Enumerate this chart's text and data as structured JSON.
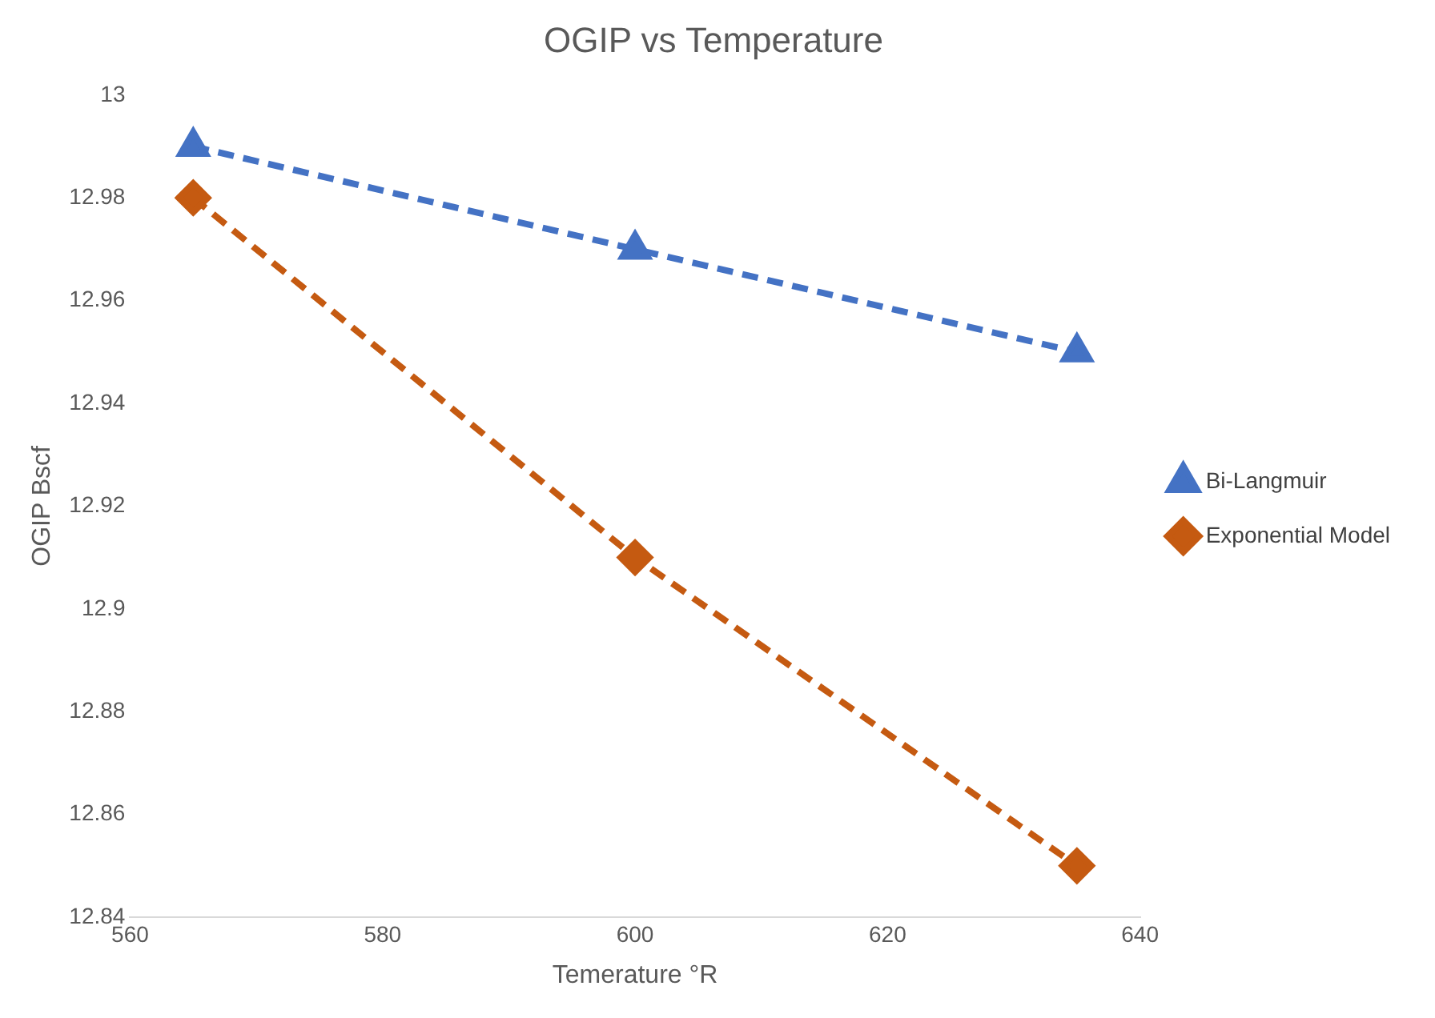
{
  "chart_data": {
    "type": "line",
    "title": "OGIP vs Temperature",
    "xlabel": "Temerature °R",
    "ylabel": "OGIP Bscf",
    "x": [
      565,
      600,
      635
    ],
    "series": [
      {
        "name": "Bi-Langmuir",
        "color": "#4472c4",
        "values": [
          12.99,
          12.97,
          12.95
        ],
        "marker": "triangle"
      },
      {
        "name": "Exponential Model",
        "color": "#c55a11",
        "values": [
          12.98,
          12.91,
          12.85
        ],
        "marker": "diamond"
      }
    ],
    "xlim": [
      560,
      640
    ],
    "xticks": [
      560,
      580,
      600,
      620,
      640
    ],
    "ylim": [
      12.84,
      13
    ],
    "yticks": [
      12.84,
      12.86,
      12.88,
      12.9,
      12.92,
      12.94,
      12.96,
      12.98,
      13
    ],
    "grid": false,
    "legend": "right",
    "line_style": "dashed"
  }
}
